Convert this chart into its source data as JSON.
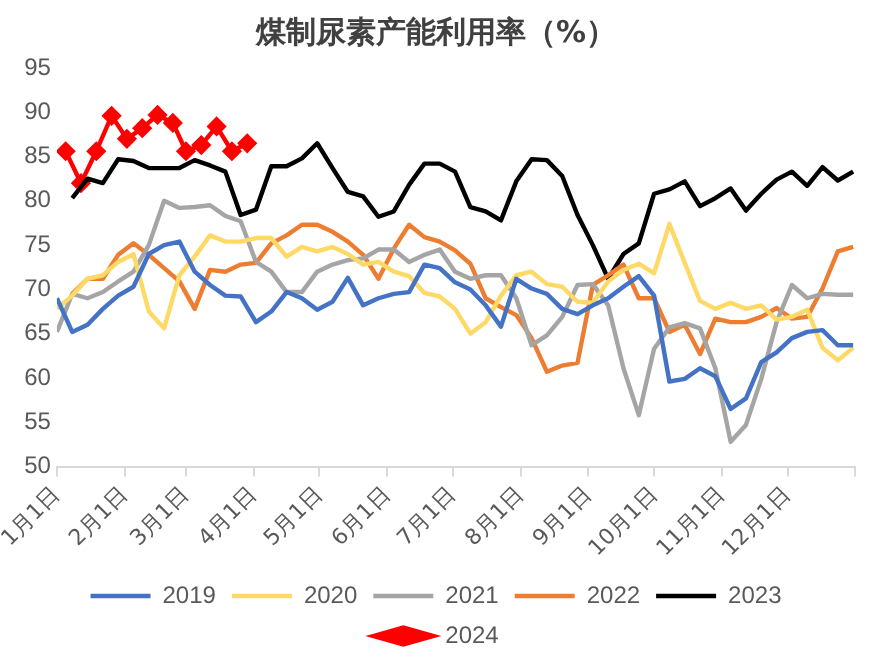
{
  "chart_data": {
    "type": "line",
    "title": "煤制尿素产能利用率（%）",
    "x": [
      "--01-01",
      "--01-08",
      "--01-15",
      "--01-22",
      "--01-29",
      "--02-05",
      "--02-12",
      "--02-19",
      "--02-26",
      "--03-05",
      "--03-12",
      "--03-19",
      "--03-26",
      "--04-02",
      "--04-09",
      "--04-16",
      "--04-23",
      "--04-30",
      "--05-07",
      "--05-14",
      "--05-21",
      "--05-28",
      "--06-04",
      "--06-11",
      "--06-18",
      "--06-25",
      "--07-02",
      "--07-09",
      "--07-16",
      "--07-23",
      "--07-30",
      "--08-06",
      "--08-13",
      "--08-20",
      "--08-27",
      "--09-03",
      "--09-10",
      "--09-17",
      "--09-24",
      "--10-01",
      "--10-08",
      "--10-15",
      "--10-22",
      "--10-29",
      "--11-05",
      "--11-12",
      "--11-19",
      "--11-26",
      "--12-03",
      "--12-10",
      "--12-17",
      "--12-24",
      "--12-31"
    ],
    "series": [
      {
        "name": "2019",
        "color": "#4472c4",
        "values": [
          69,
          65.2,
          66,
          67.8,
          69.3,
          70.3,
          74,
          75,
          75.4,
          72,
          70.5,
          69.3,
          69.2,
          66.3,
          67.5,
          69.7,
          69,
          67.7,
          68.6,
          71.3,
          68.2,
          69,
          69.5,
          69.7,
          72.8,
          72.4,
          70.8,
          70,
          68.2,
          65.8,
          71.2,
          70.1,
          69.5,
          67.8,
          67.2,
          68.2,
          69,
          70.3,
          71.5,
          69.3,
          59.6,
          59.9,
          61.1,
          60.2,
          56.5,
          57.7,
          61.8,
          62.9,
          64.5,
          65.2,
          65.4,
          63.7,
          63.7
        ]
      },
      {
        "name": "2020",
        "color": "#ffd966",
        "values": [
          67.8,
          69.3,
          71.2,
          71.6,
          73.1,
          74,
          67.5,
          65.6,
          71.6,
          73.7,
          76.1,
          75.4,
          75.4,
          75.8,
          75.8,
          73.7,
          74.8,
          74.3,
          74.8,
          74,
          72.8,
          73.1,
          72,
          71.5,
          69.6,
          69.2,
          67.8,
          65,
          66.3,
          69.3,
          71.6,
          72,
          70.6,
          70.3,
          68.6,
          68.5,
          70.9,
          72.2,
          72.9,
          71.8,
          77.4,
          73,
          68.7,
          67.8,
          68.5,
          67.8,
          68.2,
          66.6,
          66.9,
          67.7,
          63.4,
          62,
          63.4
        ]
      },
      {
        "name": "2021",
        "color": "#a5a5a5",
        "values": [
          65.2,
          69.5,
          69,
          69.7,
          70.9,
          72,
          75,
          80,
          79.2,
          79.3,
          79.5,
          78.3,
          77.7,
          73.1,
          72,
          69.7,
          69.7,
          72,
          72.8,
          73.3,
          73.5,
          74.5,
          74.5,
          73.1,
          73.9,
          74.5,
          72,
          71.2,
          71.6,
          71.6,
          69,
          63.7,
          64.8,
          66.9,
          70.5,
          70.6,
          68.2,
          61.1,
          55.8,
          63.3,
          65.7,
          66.2,
          65.6,
          61.1,
          52.8,
          54.7,
          59.9,
          66.3,
          70.5,
          69,
          69.5,
          69.4,
          69.4
        ]
      },
      {
        "name": "2022",
        "color": "#ed7d31",
        "values": [
          null,
          69.5,
          71.2,
          71.2,
          73.9,
          75.2,
          73.9,
          72.4,
          70.9,
          67.8,
          72.2,
          72,
          72.8,
          73,
          75.2,
          76.1,
          77.3,
          77.3,
          76.5,
          75.4,
          73.9,
          71.2,
          74.6,
          77.3,
          75.9,
          75.4,
          74.4,
          72.9,
          69,
          68,
          67.1,
          64.5,
          60.7,
          61.4,
          61.7,
          70.5,
          71.6,
          72.8,
          69,
          69,
          65.2,
          66,
          62.7,
          66.7,
          66.3,
          66.3,
          66.9,
          67.9,
          66.7,
          66.9,
          70.1,
          74.3,
          74.8
        ]
      },
      {
        "name": "2023",
        "color": "#000000",
        "values": [
          null,
          80.3,
          82.5,
          82,
          84.7,
          84.5,
          83.7,
          83.7,
          83.7,
          84.6,
          84,
          83.3,
          78.4,
          79,
          83.9,
          83.9,
          84.8,
          86.5,
          83.7,
          81,
          80.5,
          78.2,
          78.8,
          81.8,
          84.2,
          84.2,
          83.3,
          79.3,
          78.8,
          77.8,
          82.2,
          84.7,
          84.6,
          82.8,
          78.4,
          75,
          71.2,
          74,
          75.2,
          80.8,
          81.3,
          82.2,
          79.4,
          80.3,
          81.4,
          78.9,
          80.8,
          82.4,
          83.3,
          81.7,
          83.8,
          82.3,
          83.3
        ]
      },
      {
        "name": "2024",
        "color": "#ff0000",
        "marker": "diamond",
        "x": [
          "--01-05",
          "--01-12",
          "--01-19",
          "--01-26",
          "--02-02",
          "--02-09",
          "--02-16",
          "--02-23",
          "--03-01",
          "--03-08",
          "--03-15",
          "--03-22",
          "--03-29"
        ],
        "values": [
          85.6,
          82,
          85.6,
          89.6,
          87,
          88.2,
          89.7,
          88.8,
          85.6,
          86.3,
          88.4,
          85.6,
          86.5
        ]
      }
    ],
    "xlim": [
      "--01-01",
      "--12-31"
    ],
    "xticks": [
      {
        "value": "--01-01",
        "label": "1月1日"
      },
      {
        "value": "--02-01",
        "label": "2月1日"
      },
      {
        "value": "--03-01",
        "label": "3月1日"
      },
      {
        "value": "--04-01",
        "label": "4月1日"
      },
      {
        "value": "--05-01",
        "label": "5月1日"
      },
      {
        "value": "--06-01",
        "label": "6月1日"
      },
      {
        "value": "--07-01",
        "label": "7月1日"
      },
      {
        "value": "--08-01",
        "label": "8月1日"
      },
      {
        "value": "--09-01",
        "label": "9月1日"
      },
      {
        "value": "--10-01",
        "label": "10月1日"
      },
      {
        "value": "--11-01",
        "label": "11月1日"
      },
      {
        "value": "--12-01",
        "label": "12月1日"
      },
      {
        "value": "--12-31",
        "label": null
      }
    ],
    "ylim": [
      50,
      95
    ],
    "yticks": [
      50,
      55,
      60,
      65,
      70,
      75,
      80,
      85,
      90,
      95
    ],
    "grid": false,
    "legend": "bottom",
    "marker": "none",
    "line_style": "solid"
  }
}
